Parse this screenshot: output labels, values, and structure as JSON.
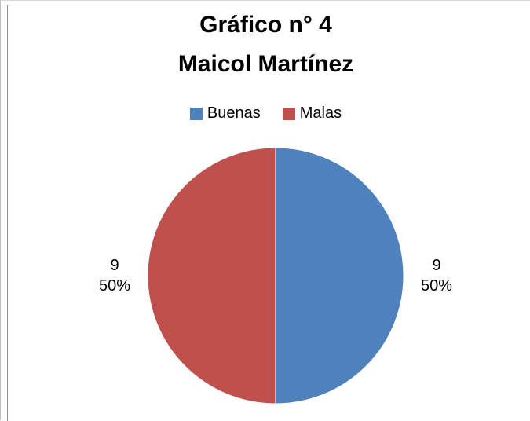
{
  "chart_data": {
    "type": "pie",
    "title_lines": [
      "Gráfico n° 4",
      "Maicol Martínez"
    ],
    "legend_position": "top",
    "slices": [
      {
        "name": "Buenas",
        "value": 9,
        "percent_label": "50%",
        "color": "#4f81bd"
      },
      {
        "name": "Malas",
        "value": 9,
        "percent_label": "50%",
        "color": "#c0504d"
      }
    ]
  }
}
